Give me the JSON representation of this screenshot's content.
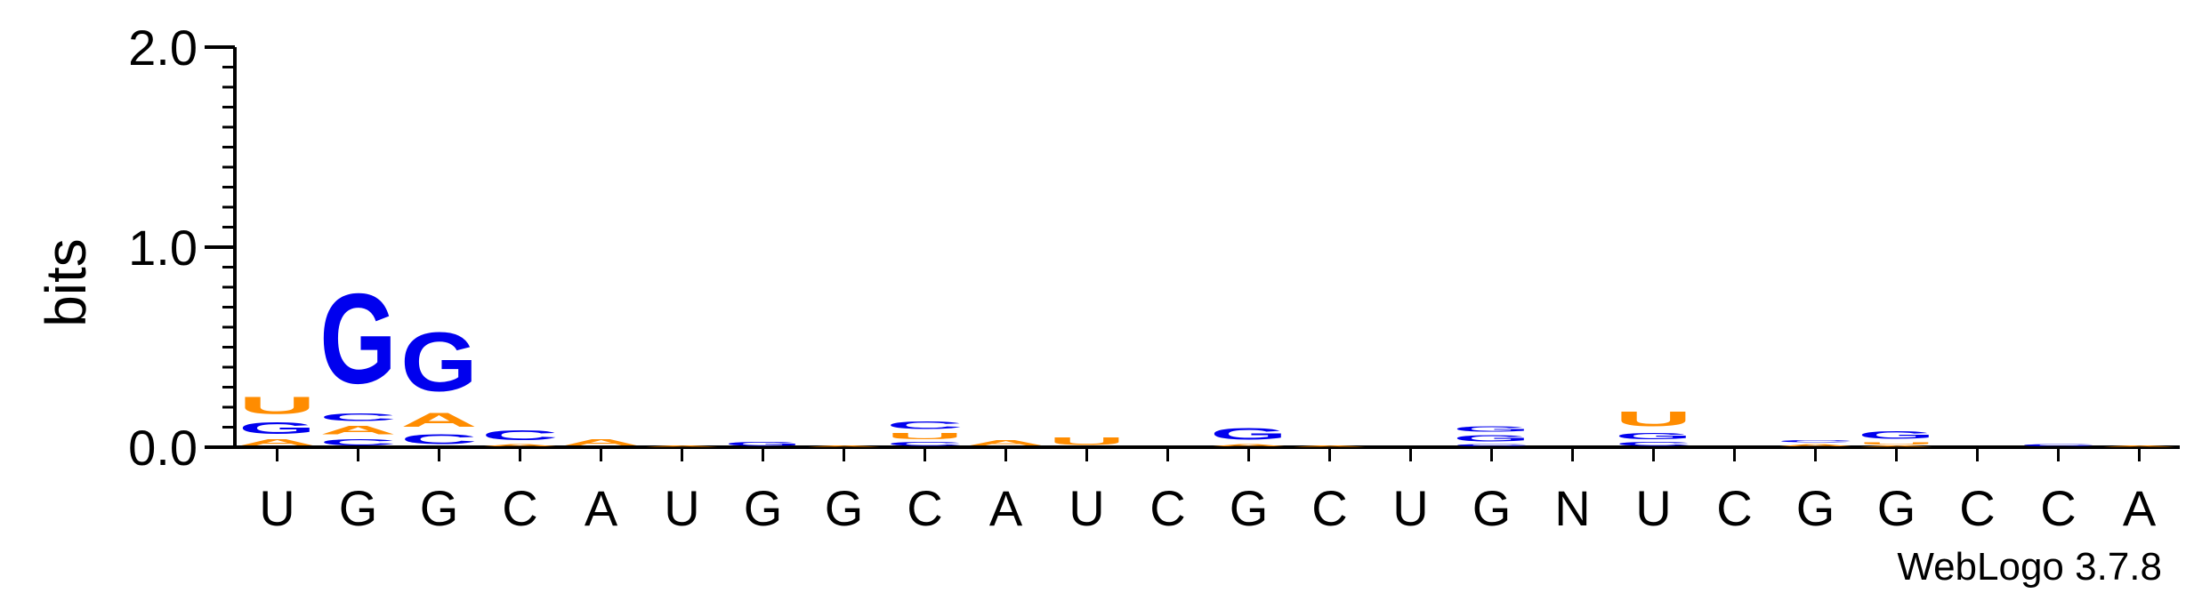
{
  "chart_data": {
    "type": "sequence-logo",
    "ylabel": "bits",
    "ylim": [
      0,
      2.0
    ],
    "yticks": [
      "0.0",
      "1.0",
      "2.0"
    ],
    "credit": "WebLogo 3.7.8",
    "colors": {
      "G": "#0000ee",
      "C": "#0000ee",
      "A": "#ff8c00",
      "U": "#ff8c00"
    },
    "positions": [
      {
        "label": "U",
        "stack": [
          {
            "base": "A",
            "bits": 0.05
          },
          {
            "base": "G",
            "bits": 0.09
          },
          {
            "base": "U",
            "bits": 0.14
          }
        ]
      },
      {
        "label": "G",
        "stack": [
          {
            "base": "C",
            "bits": 0.05
          },
          {
            "base": "A",
            "bits": 0.07
          },
          {
            "base": "C",
            "bits": 0.06
          },
          {
            "base": "G",
            "bits": 0.72
          }
        ]
      },
      {
        "label": "G",
        "stack": [
          {
            "base": "C",
            "bits": 0.08
          },
          {
            "base": "A",
            "bits": 0.11
          },
          {
            "base": "G",
            "bits": 0.47
          }
        ]
      },
      {
        "label": "C",
        "stack": [
          {
            "base": "A",
            "bits": 0.02
          },
          {
            "base": "C",
            "bits": 0.08
          }
        ]
      },
      {
        "label": "A",
        "stack": [
          {
            "base": "A",
            "bits": 0.05
          }
        ]
      },
      {
        "label": "U",
        "stack": [
          {
            "base": "A",
            "bits": 0.01
          }
        ]
      },
      {
        "label": "G",
        "stack": [
          {
            "base": "G",
            "bits": 0.03
          }
        ]
      },
      {
        "label": "G",
        "stack": [
          {
            "base": "A",
            "bits": 0.01
          }
        ]
      },
      {
        "label": "C",
        "stack": [
          {
            "base": "C",
            "bits": 0.03
          },
          {
            "base": "U",
            "bits": 0.05
          },
          {
            "base": "C",
            "bits": 0.06
          }
        ]
      },
      {
        "label": "A",
        "stack": [
          {
            "base": "A",
            "bits": 0.04
          }
        ]
      },
      {
        "label": "U",
        "stack": [
          {
            "base": "U",
            "bits": 0.06
          }
        ]
      },
      {
        "label": "C",
        "stack": []
      },
      {
        "label": "G",
        "stack": [
          {
            "base": "A",
            "bits": 0.02
          },
          {
            "base": "G",
            "bits": 0.09
          }
        ]
      },
      {
        "label": "C",
        "stack": [
          {
            "base": "A",
            "bits": 0.01
          }
        ]
      },
      {
        "label": "U",
        "stack": []
      },
      {
        "label": "G",
        "stack": [
          {
            "base": "C",
            "bits": 0.02
          },
          {
            "base": "G",
            "bits": 0.05
          },
          {
            "base": "G",
            "bits": 0.04
          }
        ]
      },
      {
        "label": "N",
        "stack": []
      },
      {
        "label": "U",
        "stack": [
          {
            "base": "C",
            "bits": 0.03
          },
          {
            "base": "G",
            "bits": 0.05
          },
          {
            "base": "U",
            "bits": 0.12
          }
        ]
      },
      {
        "label": "C",
        "stack": []
      },
      {
        "label": "G",
        "stack": [
          {
            "base": "A",
            "bits": 0.02
          },
          {
            "base": "C",
            "bits": 0.02
          }
        ]
      },
      {
        "label": "G",
        "stack": [
          {
            "base": "A",
            "bits": 0.01
          },
          {
            "base": "U",
            "bits": 0.02
          },
          {
            "base": "G",
            "bits": 0.06
          }
        ]
      },
      {
        "label": "C",
        "stack": []
      },
      {
        "label": "C",
        "stack": [
          {
            "base": "C",
            "bits": 0.02
          }
        ]
      },
      {
        "label": "A",
        "stack": [
          {
            "base": "A",
            "bits": 0.01
          }
        ]
      }
    ]
  }
}
